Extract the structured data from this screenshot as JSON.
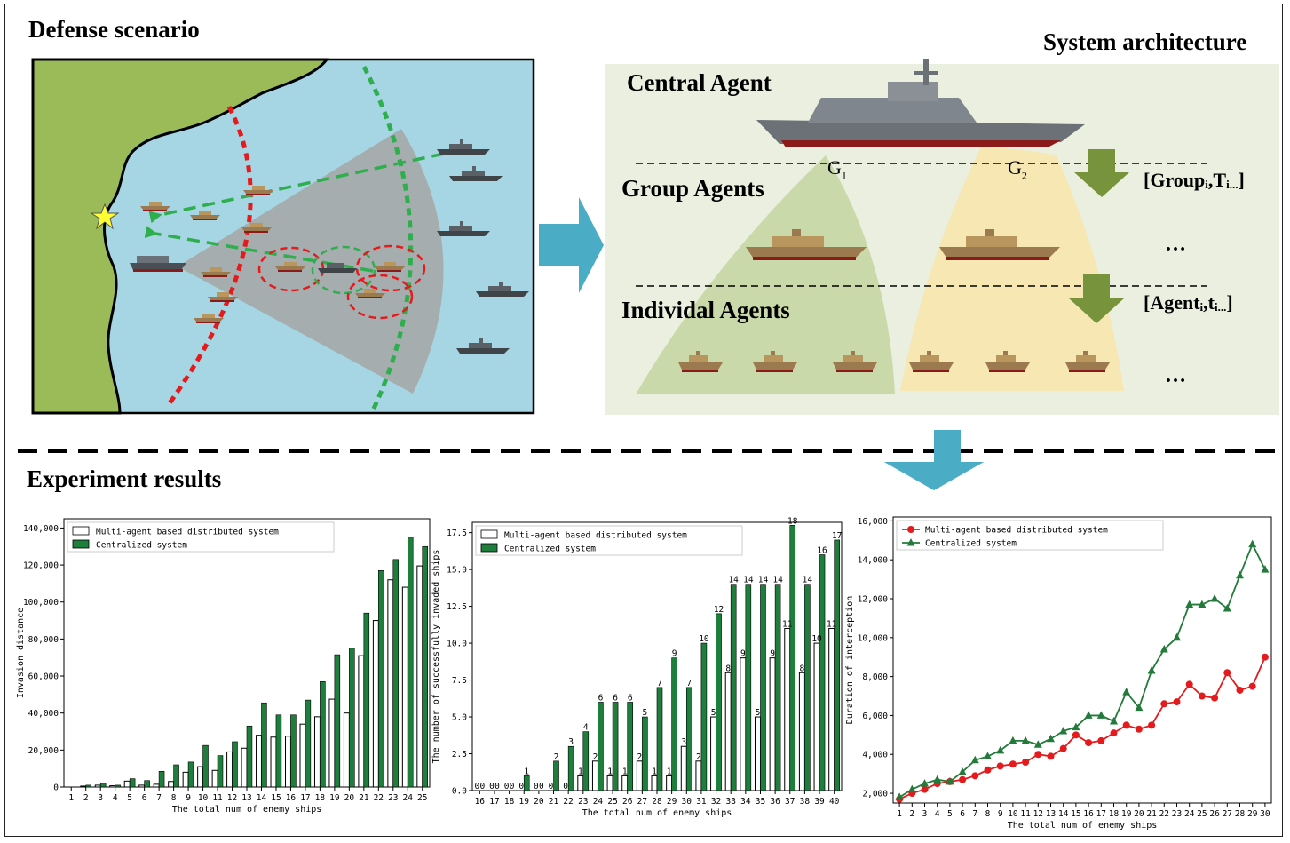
{
  "headings": {
    "defense": "Defense scenario",
    "architecture": "System architecture",
    "experiment": "Experiment results"
  },
  "architecture": {
    "central": "Central Agent",
    "group": "Group Agents",
    "individual": "Individal Agents",
    "g1": "G",
    "g1_sub": "1",
    "g2": "G",
    "g2_sub": "2",
    "group_bracket_pre": "[Group",
    "group_bracket_sub": "i",
    "group_bracket_mid": ",T",
    "group_bracket_sub2": "i...",
    "group_bracket_post": "]",
    "agent_bracket_pre": "[Agent",
    "agent_bracket_sub": "i",
    "agent_bracket_mid": ",t",
    "agent_bracket_sub2": "i...",
    "agent_bracket_post": "]",
    "ellipsis": "…"
  },
  "colors": {
    "land": "#9bbb59",
    "sea": "#a6d5e3",
    "panel": "#eaefdf",
    "green_zone": "#c9d9aa",
    "yellow_zone": "#f6e7b3",
    "arrow_blue": "#4bacc6",
    "arrow_green": "#77933c",
    "bar_green": "#1e7f3d",
    "line_red": "#e41a1c",
    "line_green": "#237a3b"
  },
  "chart_data": [
    {
      "type": "bar",
      "ylabel": "Invasion distance",
      "xlabel": "The total num of enemy ships",
      "ylim": [
        0,
        145000
      ],
      "yticks": [
        0,
        20000,
        40000,
        60000,
        80000,
        100000,
        120000,
        140000
      ],
      "ytick_labels": [
        "0",
        "20,000",
        "40,000",
        "60,000",
        "80,000",
        "100,000",
        "120,000",
        "140,000"
      ],
      "categories": [
        "1",
        "2",
        "3",
        "4",
        "5",
        "6",
        "7",
        "8",
        "9",
        "10",
        "11",
        "12",
        "13",
        "14",
        "15",
        "16",
        "17",
        "18",
        "19",
        "20",
        "21",
        "22",
        "23",
        "24",
        "25"
      ],
      "legend": "top-left",
      "series": [
        {
          "name": "Multi-agent based distributed system",
          "values": [
            0,
            500,
            1000,
            700,
            3200,
            1000,
            1500,
            3000,
            8000,
            11000,
            9000,
            19000,
            21000,
            28000,
            27000,
            27500,
            34000,
            38000,
            47500,
            40000,
            71000,
            90000,
            112000,
            108000,
            119500
          ]
        },
        {
          "name": "Centralized system",
          "values": [
            0,
            1000,
            2000,
            1000,
            4500,
            3500,
            8500,
            12000,
            13500,
            22500,
            17000,
            24500,
            33000,
            45500,
            39000,
            39000,
            47000,
            57000,
            71500,
            75000,
            94000,
            117000,
            123000,
            135000,
            130000
          ]
        }
      ]
    },
    {
      "type": "bar",
      "ylabel": "The number of successfully invaded ships",
      "xlabel": "The total num of enemy ships",
      "ylim": [
        0,
        18.2
      ],
      "yticks": [
        0,
        2.5,
        5,
        7.5,
        10,
        12.5,
        15,
        17.5
      ],
      "ytick_labels": [
        "0.0",
        "2.5",
        "5.0",
        "7.5",
        "10.0",
        "12.5",
        "15.0",
        "17.5"
      ],
      "categories": [
        "16",
        "17",
        "18",
        "19",
        "20",
        "21",
        "22",
        "23",
        "24",
        "25",
        "26",
        "27",
        "28",
        "29",
        "30",
        "31",
        "32",
        "33",
        "34",
        "35",
        "36",
        "37",
        "38",
        "39",
        "40"
      ],
      "legend": "top-left",
      "series": [
        {
          "name": "Multi-agent based distributed system",
          "values": [
            0,
            0,
            0,
            0,
            0,
            0,
            0,
            1,
            2,
            1,
            1,
            2,
            1,
            1,
            3,
            2,
            5,
            8,
            9,
            5,
            9,
            11,
            8,
            10,
            11
          ]
        },
        {
          "name": "Centralized system",
          "values": [
            0,
            0,
            0,
            1,
            0,
            2,
            3,
            4,
            6,
            6,
            6,
            5,
            7,
            9,
            7,
            10,
            12,
            14,
            14,
            14,
            14,
            18,
            14,
            16,
            17
          ]
        }
      ]
    },
    {
      "type": "line",
      "ylabel": "Duration of interception",
      "xlabel": "The total num of enemy ships",
      "ylim": [
        1500,
        16200
      ],
      "yticks": [
        2000,
        4000,
        6000,
        8000,
        10000,
        12000,
        14000,
        16000
      ],
      "ytick_labels": [
        "2,000",
        "4,000",
        "6,000",
        "8,000",
        "10,000",
        "12,000",
        "14,000",
        "16,000"
      ],
      "x": [
        "1",
        "2",
        "3",
        "4",
        "5",
        "6",
        "7",
        "8",
        "9",
        "10",
        "11",
        "12",
        "13",
        "14",
        "15",
        "16",
        "17",
        "18",
        "19",
        "20",
        "21",
        "22",
        "23",
        "24",
        "25",
        "26",
        "27",
        "28",
        "29",
        "30"
      ],
      "legend": "top-left",
      "series": [
        {
          "name": "Multi-agent based distributed system",
          "values": [
            1700,
            2000,
            2200,
            2500,
            2600,
            2700,
            2900,
            3200,
            3400,
            3500,
            3600,
            4000,
            3900,
            4300,
            5000,
            4600,
            4700,
            5100,
            5500,
            5300,
            5500,
            6600,
            6700,
            7600,
            7000,
            6900,
            8200,
            7300,
            7500,
            9000
          ]
        },
        {
          "name": "Centralized system",
          "values": [
            1800,
            2200,
            2500,
            2700,
            2600,
            3100,
            3700,
            3900,
            4200,
            4700,
            4700,
            4500,
            4800,
            5200,
            5400,
            6000,
            6000,
            5700,
            7200,
            6400,
            8300,
            9400,
            10000,
            11700,
            11700,
            12000,
            11500,
            13200,
            14800,
            13500
          ]
        }
      ]
    }
  ]
}
